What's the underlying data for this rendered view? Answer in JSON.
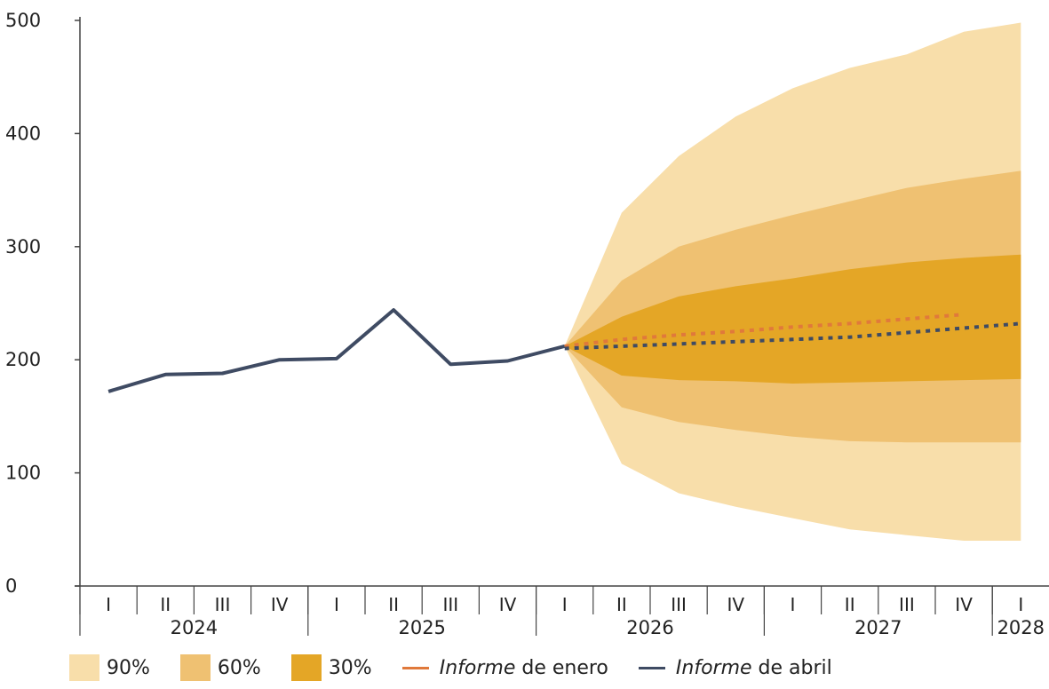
{
  "chart_data": {
    "type": "area",
    "ylim": [
      0,
      500
    ],
    "yticks": [
      "0",
      "100",
      "200",
      "300",
      "400",
      "500"
    ],
    "quarters": [
      "I",
      "II",
      "III",
      "IV",
      "I",
      "II",
      "III",
      "IV",
      "I",
      "II",
      "III",
      "IV",
      "I",
      "II",
      "III",
      "IV",
      "I"
    ],
    "years": [
      {
        "label": "2024",
        "start": 0,
        "end": 3
      },
      {
        "label": "2025",
        "start": 4,
        "end": 7
      },
      {
        "label": "2026",
        "start": 8,
        "end": 11
      },
      {
        "label": "2027",
        "start": 12,
        "end": 15
      },
      {
        "label": "2028",
        "start": 16,
        "end": 16
      }
    ],
    "historical": {
      "x": [
        0,
        1,
        2,
        3,
        4,
        5,
        6,
        7,
        8
      ],
      "values": [
        172,
        187,
        188,
        200,
        201,
        244,
        196,
        199,
        212
      ]
    },
    "fan": {
      "x": [
        8,
        9,
        10,
        11,
        12,
        13,
        14,
        15,
        16
      ],
      "bands": [
        {
          "name": "90%",
          "upper": [
            212,
            330,
            380,
            415,
            440,
            458,
            470,
            490,
            498
          ],
          "lower": [
            212,
            108,
            82,
            70,
            60,
            50,
            45,
            40,
            40
          ]
        },
        {
          "name": "60%",
          "upper": [
            212,
            270,
            300,
            315,
            328,
            340,
            352,
            360,
            367
          ],
          "lower": [
            212,
            158,
            145,
            138,
            132,
            128,
            127,
            127,
            127
          ]
        },
        {
          "name": "30%",
          "upper": [
            212,
            238,
            256,
            265,
            272,
            280,
            286,
            290,
            293
          ],
          "lower": [
            212,
            186,
            182,
            181,
            179,
            180,
            181,
            182,
            183
          ]
        }
      ]
    },
    "series": [
      {
        "name": "Informe de enero",
        "x": [
          8,
          9,
          10,
          11,
          12,
          13,
          14,
          15
        ],
        "values": [
          212,
          218,
          222,
          225,
          229,
          232,
          236,
          240
        ]
      },
      {
        "name": "Informe de abril",
        "x": [
          8,
          9,
          10,
          11,
          12,
          13,
          14,
          15,
          16
        ],
        "values": [
          210,
          212,
          214,
          216,
          218,
          220,
          224,
          228,
          232
        ]
      }
    ],
    "colors": {
      "band90": "#f8deaa",
      "band60": "#efc172",
      "band30": "#e4a626",
      "historical": "#3f4b63",
      "enero": "#e0793b",
      "abril": "#3f4b63"
    }
  },
  "legend": {
    "items": [
      {
        "label": "90%"
      },
      {
        "label": "60%"
      },
      {
        "label": "30%"
      }
    ],
    "enero_italic": "Informe",
    "enero_rest": " de enero",
    "abril_italic": "Informe",
    "abril_rest": " de abril"
  }
}
